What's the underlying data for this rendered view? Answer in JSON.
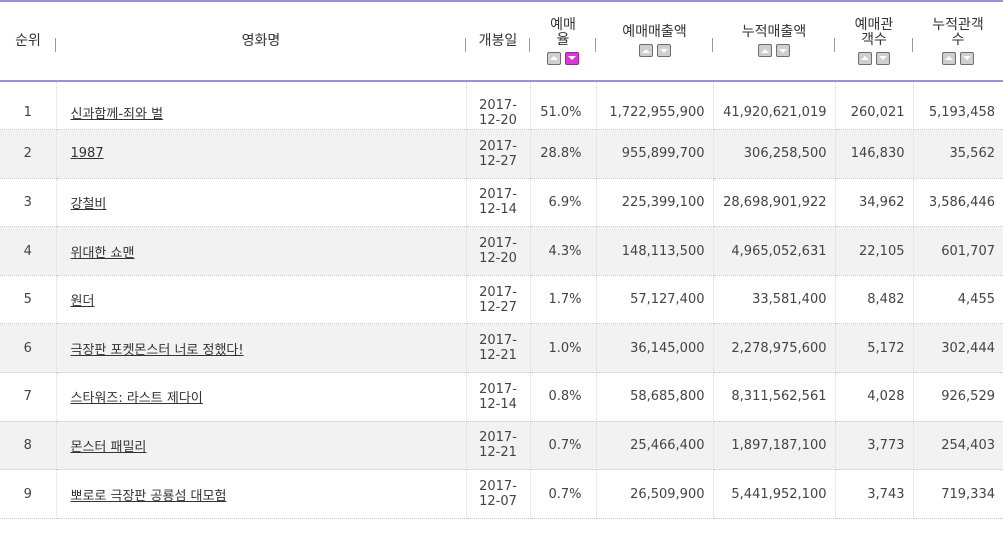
{
  "table": {
    "headers": {
      "rank": "순위",
      "title": "영화명",
      "open_date": "개봉일",
      "rate_line1": "예매",
      "rate_line2": "율",
      "sales": "예매매출액",
      "cum_sales": "누적매출액",
      "aud_line1": "예매관",
      "aud_line2": "객수",
      "cum_aud_line1": "누적관객",
      "cum_aud_line2": "수"
    },
    "rows": [
      {
        "rank": "1",
        "title": "신과함께-죄와 벌",
        "date_y": "2017-",
        "date_md": "12-20",
        "rate": "51.0%",
        "sales": "1,722,955,900",
        "cum_sales": "41,920,621,019",
        "aud": "260,021",
        "cum_aud": "5,193,458"
      },
      {
        "rank": "2",
        "title": "1987",
        "date_y": "2017-",
        "date_md": "12-27",
        "rate": "28.8%",
        "sales": "955,899,700",
        "cum_sales": "306,258,500",
        "aud": "146,830",
        "cum_aud": "35,562"
      },
      {
        "rank": "3",
        "title": "강철비",
        "date_y": "2017-",
        "date_md": "12-14",
        "rate": "6.9%",
        "sales": "225,399,100",
        "cum_sales": "28,698,901,922",
        "aud": "34,962",
        "cum_aud": "3,586,446"
      },
      {
        "rank": "4",
        "title": "위대한 쇼맨",
        "date_y": "2017-",
        "date_md": "12-20",
        "rate": "4.3%",
        "sales": "148,113,500",
        "cum_sales": "4,965,052,631",
        "aud": "22,105",
        "cum_aud": "601,707"
      },
      {
        "rank": "5",
        "title": "원더",
        "date_y": "2017-",
        "date_md": "12-27",
        "rate": "1.7%",
        "sales": "57,127,400",
        "cum_sales": "33,581,400",
        "aud": "8,482",
        "cum_aud": "4,455"
      },
      {
        "rank": "6",
        "title": "극장판 포켓몬스터 너로 정했다!",
        "date_y": "2017-",
        "date_md": "12-21",
        "rate": "1.0%",
        "sales": "36,145,000",
        "cum_sales": "2,278,975,600",
        "aud": "5,172",
        "cum_aud": "302,444"
      },
      {
        "rank": "7",
        "title": "스타워즈: 라스트 제다이",
        "date_y": "2017-",
        "date_md": "12-14",
        "rate": "0.8%",
        "sales": "58,685,800",
        "cum_sales": "8,311,562,561",
        "aud": "4,028",
        "cum_aud": "926,529"
      },
      {
        "rank": "8",
        "title": "몬스터 패밀리",
        "date_y": "2017-",
        "date_md": "12-21",
        "rate": "0.7%",
        "sales": "25,466,400",
        "cum_sales": "1,897,187,100",
        "aud": "3,773",
        "cum_aud": "254,403"
      },
      {
        "rank": "9",
        "title": "뽀로로 극장판 공룡섬 대모험",
        "date_y": "2017-",
        "date_md": "12-07",
        "rate": "0.7%",
        "sales": "26,509,900",
        "cum_sales": "5,441,952,100",
        "aud": "3,743",
        "cum_aud": "719,334"
      }
    ]
  },
  "colors": {
    "header_border": "#9a92d6",
    "active_sort": "#d63bd3",
    "row_alt": "#f2f2f2"
  },
  "icons": {
    "sort_up": "chevron-up-icon",
    "sort_down": "chevron-down-icon"
  }
}
